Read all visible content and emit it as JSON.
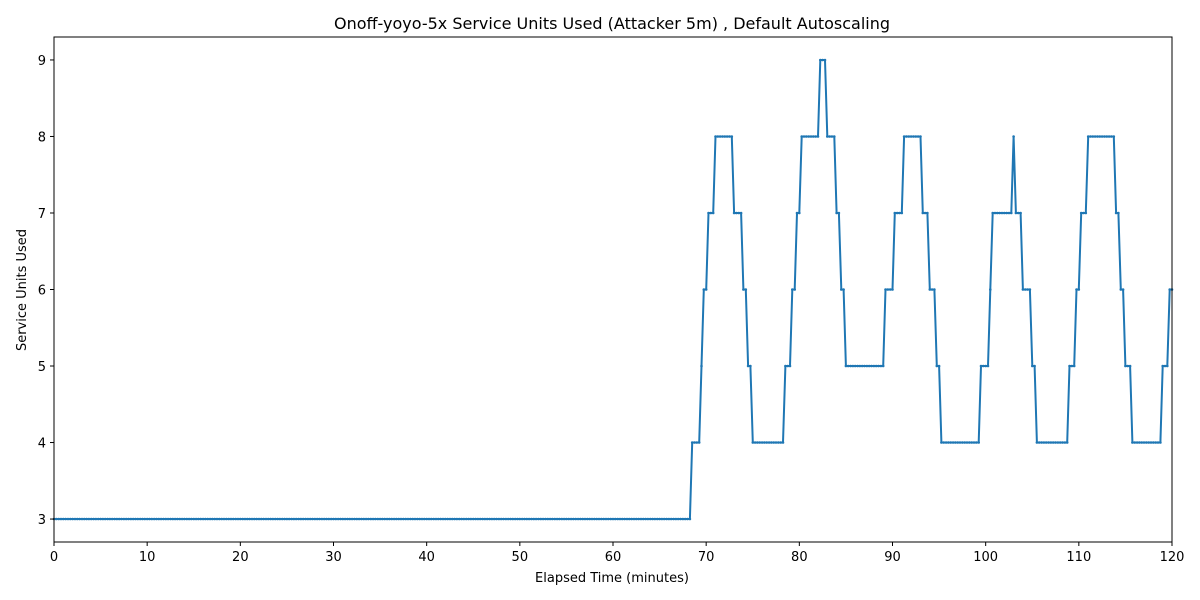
{
  "chart_data": {
    "type": "line",
    "title": "Onoff-yoyo-5x Service Units Used (Attacker 5m) , Default Autoscaling",
    "xlabel": "Elapsed Time (minutes)",
    "ylabel": "Service Units Used",
    "xlim": [
      0,
      120
    ],
    "ylim": [
      2.7,
      9.3
    ],
    "xticks": [
      0,
      10,
      20,
      30,
      40,
      50,
      60,
      70,
      80,
      90,
      100,
      110,
      120
    ],
    "yticks": [
      3,
      4,
      5,
      6,
      7,
      8,
      9
    ],
    "grid": false,
    "legend": "none",
    "series_color": "#1f77b4",
    "series": [
      {
        "step_interval_minutes": 0.25,
        "steps": [
          [
            0,
            3
          ],
          [
            68.5,
            4
          ],
          [
            69.3,
            5
          ],
          [
            69.6,
            6
          ],
          [
            70.2,
            7
          ],
          [
            70.8,
            8
          ],
          [
            73.0,
            7
          ],
          [
            74.0,
            6
          ],
          [
            74.3,
            5
          ],
          [
            74.9,
            4
          ],
          [
            78.5,
            5
          ],
          [
            79.1,
            6
          ],
          [
            79.6,
            7
          ],
          [
            80.1,
            8
          ],
          [
            82.2,
            9
          ],
          [
            83.0,
            8
          ],
          [
            83.8,
            7
          ],
          [
            84.4,
            6
          ],
          [
            84.8,
            5
          ],
          [
            89.2,
            6
          ],
          [
            90.1,
            7
          ],
          [
            91.1,
            8
          ],
          [
            93.2,
            7
          ],
          [
            93.8,
            6
          ],
          [
            94.6,
            5
          ],
          [
            95.1,
            4
          ],
          [
            99.3,
            5
          ],
          [
            100.3,
            6
          ],
          [
            100.7,
            7
          ],
          [
            102.9,
            8
          ],
          [
            103.1,
            7
          ],
          [
            103.9,
            6
          ],
          [
            104.8,
            5
          ],
          [
            105.5,
            4
          ],
          [
            109.0,
            5
          ],
          [
            109.7,
            6
          ],
          [
            110.2,
            7
          ],
          [
            110.9,
            8
          ],
          [
            114.0,
            7
          ],
          [
            114.5,
            6
          ],
          [
            115.0,
            5
          ],
          [
            115.6,
            4
          ],
          [
            118.9,
            5
          ],
          [
            119.6,
            6
          ],
          [
            120,
            6
          ]
        ]
      }
    ]
  }
}
